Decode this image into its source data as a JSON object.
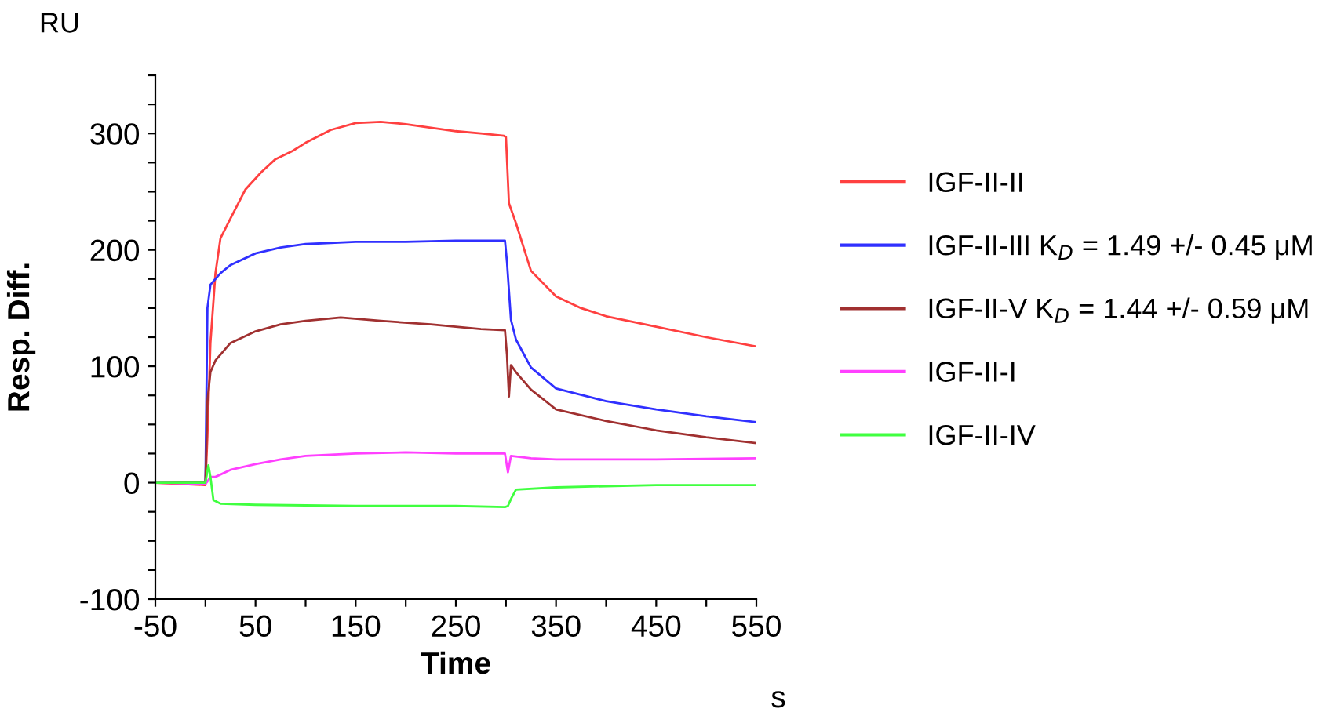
{
  "chart_data": {
    "type": "line",
    "xlabel": "Time",
    "ylabel": "Resp. Diff.",
    "annotations": [
      "RU",
      "s"
    ],
    "xlim": [
      -50,
      550
    ],
    "ylim": [
      -100,
      350
    ],
    "xticks": [
      -50,
      {
        "value": 0,
        "label": null
      },
      50,
      {
        "value": 100,
        "label": null
      },
      150,
      {
        "value": 200,
        "label": null
      },
      250,
      {
        "value": 300,
        "label": null
      },
      350,
      {
        "value": 400,
        "label": null
      },
      450,
      {
        "value": 500,
        "label": null
      },
      550
    ],
    "yticks": [
      -100,
      {
        "value": -75,
        "label": null
      },
      {
        "value": -50,
        "label": null
      },
      {
        "value": -25,
        "label": null
      },
      0,
      {
        "value": 25,
        "label": null
      },
      {
        "value": 50,
        "label": null
      },
      {
        "value": 75,
        "label": null
      },
      100,
      {
        "value": 125,
        "label": null
      },
      {
        "value": 150,
        "label": null
      },
      {
        "value": 175,
        "label": null
      },
      200,
      {
        "value": 225,
        "label": null
      },
      {
        "value": 250,
        "label": null
      },
      {
        "value": 275,
        "label": null
      },
      300,
      {
        "value": 325,
        "label": null
      },
      {
        "value": 350,
        "label": null
      }
    ],
    "grid": false,
    "legend": "right",
    "marker": "none",
    "line_style": "solid",
    "series": [
      {
        "name": "IGF-II-II",
        "color": "#ff4040",
        "x": [
          -50,
          -1,
          0,
          2,
          5,
          10,
          15,
          25,
          40,
          56,
          70,
          87,
          100,
          125,
          150,
          175,
          200,
          225,
          250,
          275,
          298,
          300,
          303,
          310,
          325,
          350,
          375,
          400,
          450,
          500,
          550
        ],
        "values": [
          0,
          -2,
          -2,
          40,
          120,
          180,
          210,
          227,
          252,
          267,
          278,
          285,
          292,
          303,
          309,
          310,
          308,
          305,
          302,
          300,
          298,
          297,
          240,
          223,
          182,
          160,
          150,
          143,
          134,
          125,
          117
        ]
      },
      {
        "name": "IGF-II-III K$_{D}$ = 1.49 +/- 0.45 μM",
        "color": "#3030ff",
        "x": [
          -50,
          0,
          2,
          5,
          15,
          25,
          50,
          75,
          100,
          150,
          200,
          250,
          299,
          301,
          305,
          310,
          325,
          350,
          400,
          450,
          500,
          550
        ],
        "values": [
          0,
          0,
          150,
          170,
          180,
          187,
          197,
          202,
          205,
          207,
          207,
          208,
          208,
          190,
          140,
          123,
          99,
          81,
          70,
          63,
          57,
          52
        ]
      },
      {
        "name": "IGF-II-V K$_{D}$ = 1.44 +/- 0.59 μM",
        "color": "#a03030",
        "x": [
          -50,
          0,
          2,
          5,
          10,
          25,
          50,
          75,
          100,
          135,
          175,
          225,
          275,
          299,
          301,
          303,
          305,
          310,
          325,
          350,
          400,
          450,
          500,
          550
        ],
        "values": [
          0,
          0,
          70,
          95,
          105,
          120,
          130,
          136,
          139,
          142,
          139,
          136,
          132,
          131,
          110,
          74,
          101,
          95,
          80,
          63,
          53,
          45,
          39,
          34
        ]
      },
      {
        "name": "IGF-II-I",
        "color": "#ff40ff",
        "x": [
          -50,
          0,
          2,
          5,
          10,
          25,
          50,
          75,
          100,
          150,
          200,
          250,
          299,
          302,
          305,
          325,
          350,
          450,
          550
        ],
        "values": [
          0,
          -1,
          1,
          5,
          5,
          11,
          16,
          20,
          23,
          25,
          26,
          25,
          25,
          9,
          23,
          21,
          20,
          20,
          21
        ]
      },
      {
        "name": "IGF-II-IV",
        "color": "#40ff40",
        "x": [
          -50,
          0,
          3,
          5,
          8,
          15,
          50,
          150,
          250,
          299,
          302,
          305,
          310,
          350,
          450,
          550
        ],
        "values": [
          0,
          0,
          15,
          5,
          -15,
          -18,
          -19,
          -20,
          -20,
          -21,
          -20,
          -14,
          -6,
          -4,
          -2,
          -2
        ]
      }
    ]
  }
}
